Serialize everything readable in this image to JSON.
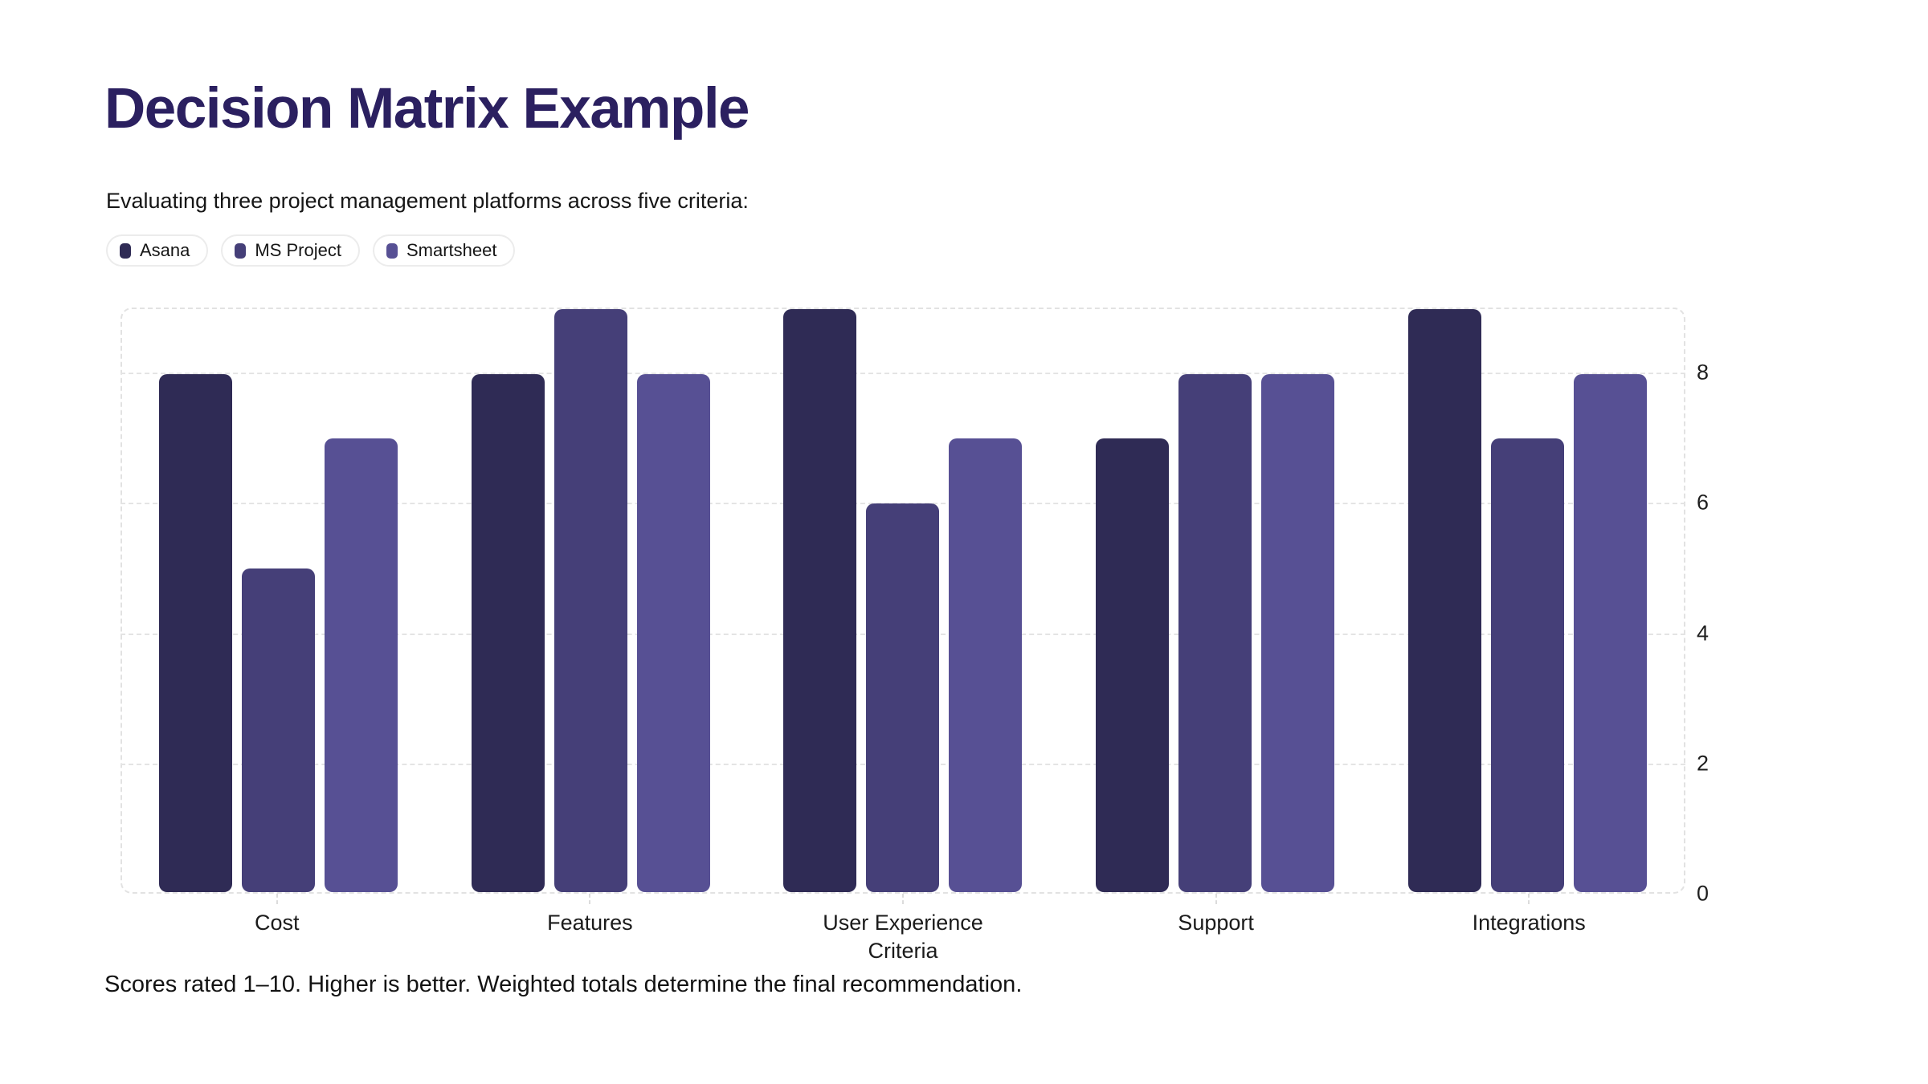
{
  "colors": {
    "title": "#2b2060",
    "body_text": "#161616",
    "axis_text": "#1f1f1f",
    "grid": "#e4e4e4",
    "chip_border": "#ececec",
    "background": "#ffffff"
  },
  "legend": {
    "items": [
      {
        "label": "Asana",
        "color": "#2f2b55"
      },
      {
        "label": "MS Project",
        "color": "#453f78"
      },
      {
        "label": "Smartsheet",
        "color": "#575094"
      }
    ]
  },
  "chart_data": {
    "type": "bar",
    "title": "Decision Matrix Example",
    "subtitle": "Evaluating three project management platforms across five criteria:",
    "categories": [
      "Cost",
      "Features",
      "User Experience",
      "Support",
      "Integrations"
    ],
    "series": [
      {
        "name": "Asana",
        "color": "#2f2b55",
        "values": [
          8,
          8,
          9,
          7,
          9
        ]
      },
      {
        "name": "MS Project",
        "color": "#453f78",
        "values": [
          5,
          9,
          6,
          8,
          7
        ]
      },
      {
        "name": "Smartsheet",
        "color": "#575094",
        "values": [
          7,
          8,
          7,
          8,
          8
        ]
      }
    ],
    "xlabel": "Criteria",
    "ylabel": "",
    "ylim": [
      0,
      9
    ],
    "yticks": [
      8,
      6,
      4,
      2,
      0
    ],
    "grid": true,
    "legend_position": "top",
    "footnote": "Scores rated 1–10. Higher is better. Weighted totals determine the final recommendation."
  }
}
